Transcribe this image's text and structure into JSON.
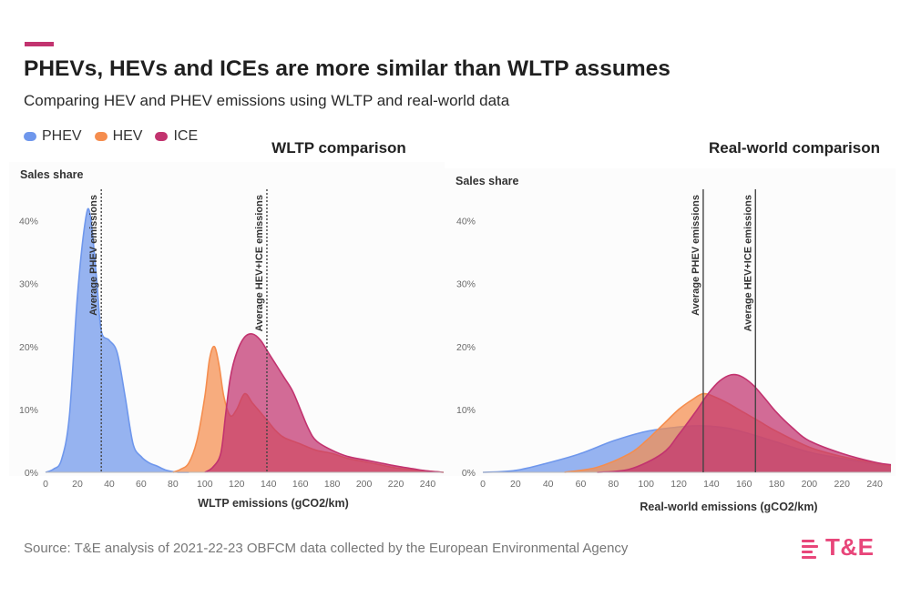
{
  "header": {
    "title": "PHEVs, HEVs and ICEs are more similar than WLTP assumes",
    "subtitle": "Comparing HEV and PHEV emissions using WLTP and real-world data"
  },
  "legend": [
    {
      "label": "PHEV",
      "color": "#6f97ec"
    },
    {
      "label": "HEV",
      "color": "#f58d4e"
    },
    {
      "label": "ICE",
      "color": "#c2336f"
    }
  ],
  "source": "Source: T&E analysis of 2021-22-23 OBFCM data collected by the European Environmental Agency",
  "logo": {
    "text": "T&E",
    "color": "#e8467a"
  },
  "chart_data": [
    {
      "type": "area",
      "title": "WLTP comparison",
      "ylabel": "Sales share",
      "xlabel": "WLTP emissions (gCO2/km)",
      "xlim": [
        0,
        250
      ],
      "ylim": [
        0,
        45
      ],
      "xticks": [
        0,
        20,
        40,
        60,
        80,
        100,
        120,
        140,
        160,
        180,
        200,
        220,
        240
      ],
      "yticks": [
        0,
        10,
        20,
        30,
        40
      ],
      "ytick_labels": [
        "0%",
        "10%",
        "20%",
        "30%",
        "40%"
      ],
      "series": [
        {
          "name": "PHEV",
          "color": "#6f97ec",
          "x": [
            0,
            5,
            10,
            15,
            20,
            25,
            28,
            32,
            35,
            40,
            45,
            50,
            55,
            60,
            65,
            70,
            75,
            80,
            85,
            90
          ],
          "y": [
            0,
            0.5,
            2,
            9,
            28,
            40,
            41,
            31,
            22.5,
            21,
            19,
            12,
            4.5,
            2.5,
            1.5,
            1,
            0.4,
            0.1,
            0,
            0
          ]
        },
        {
          "name": "HEV",
          "color": "#f58d4e",
          "x": [
            80,
            85,
            90,
            95,
            100,
            103,
            106,
            109,
            112,
            116,
            120,
            125,
            130,
            135,
            140,
            145,
            150,
            160,
            170,
            180,
            190,
            200,
            210,
            220,
            230,
            240,
            250
          ],
          "y": [
            0,
            0.5,
            1.5,
            5,
            12,
            18,
            20,
            17,
            12,
            9,
            10,
            12.5,
            11,
            9.5,
            8,
            6.5,
            5.5,
            4.5,
            3.5,
            3,
            2.2,
            1.7,
            1.2,
            0.7,
            0.4,
            0.2,
            0
          ]
        },
        {
          "name": "ICE",
          "color": "#c2336f",
          "x": [
            100,
            105,
            110,
            113,
            116,
            120,
            125,
            130,
            135,
            140,
            145,
            150,
            155,
            160,
            165,
            170,
            180,
            190,
            200,
            210,
            220,
            230,
            240,
            250
          ],
          "y": [
            0,
            0.8,
            3,
            9,
            15,
            19,
            21.5,
            22,
            21,
            19,
            17,
            15,
            13,
            10,
            7,
            5,
            3.5,
            2.5,
            2,
            1.5,
            1,
            0.6,
            0.2,
            0
          ]
        }
      ],
      "markers": [
        {
          "label": "Average PHEV emissions",
          "x": 35
        },
        {
          "label": "Average HEV+ICE emissions",
          "x": 139
        }
      ]
    },
    {
      "type": "area",
      "title": "Real-world comparison",
      "ylabel": "Sales share",
      "xlabel": "Real-world emissions (gCO2/km)",
      "xlim": [
        0,
        250
      ],
      "ylim": [
        0,
        45
      ],
      "xticks": [
        0,
        20,
        40,
        60,
        80,
        100,
        120,
        140,
        160,
        180,
        200,
        220,
        240
      ],
      "yticks": [
        0,
        10,
        20,
        30,
        40
      ],
      "ytick_labels": [
        "0%",
        "10%",
        "20%",
        "30%",
        "40%"
      ],
      "series": [
        {
          "name": "PHEV",
          "color": "#6f97ec",
          "x": [
            0,
            20,
            40,
            60,
            80,
            100,
            120,
            135,
            150,
            165,
            180,
            200,
            220,
            240,
            250
          ],
          "y": [
            0,
            0.3,
            1.5,
            3,
            5,
            6.5,
            7.2,
            7.4,
            7,
            6,
            4.8,
            3.2,
            2.2,
            1.3,
            1
          ]
        },
        {
          "name": "HEV",
          "color": "#f58d4e",
          "x": [
            50,
            70,
            90,
            100,
            110,
            120,
            128,
            135,
            142,
            150,
            160,
            170,
            180,
            200,
            220,
            240,
            250
          ],
          "y": [
            0,
            0.8,
            3,
            5,
            7.5,
            10,
            11.5,
            12.5,
            12,
            11,
            9.5,
            8,
            6.5,
            4,
            2.5,
            1.5,
            1
          ]
        },
        {
          "name": "ICE",
          "color": "#c2336f",
          "x": [
            70,
            90,
            110,
            120,
            130,
            138,
            145,
            152,
            158,
            165,
            172,
            180,
            190,
            200,
            220,
            240,
            250
          ],
          "y": [
            0,
            0.5,
            3,
            6,
            9.5,
            12.5,
            14.5,
            15.5,
            15.3,
            14,
            12,
            9.5,
            7,
            5,
            3,
            1.6,
            1.2
          ]
        }
      ],
      "markers": [
        {
          "label": "Average PHEV emissions",
          "x": 135
        },
        {
          "label": "Average HEV+ICE emissions",
          "x": 167
        }
      ]
    }
  ]
}
